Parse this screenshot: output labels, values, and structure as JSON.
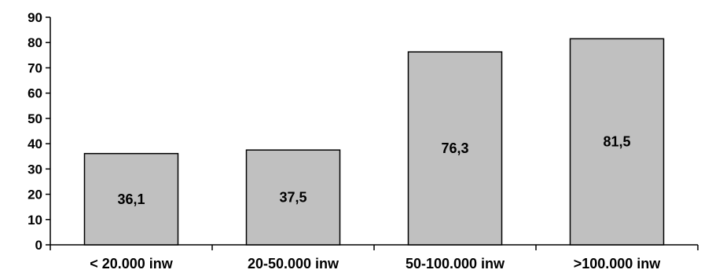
{
  "chart_data": {
    "type": "bar",
    "title": "",
    "xlabel": "",
    "ylabel": "",
    "categories": [
      "< 20.000 inw",
      "20-50.000 inw",
      "50-100.000 inw",
      ">100.000 inw"
    ],
    "values": [
      36.1,
      37.5,
      76.3,
      81.5
    ],
    "data_labels": [
      "36,1",
      "37,5",
      "76,3",
      "81,5"
    ],
    "ylim": [
      0,
      90
    ],
    "yticks": [
      0,
      10,
      20,
      30,
      40,
      50,
      60,
      70,
      80,
      90
    ],
    "grid": false,
    "legend": "none",
    "colors": {
      "bar_fill": "#c0c0c0",
      "bar_stroke": "#000000",
      "axis": "#000000",
      "text": "#000000"
    }
  }
}
